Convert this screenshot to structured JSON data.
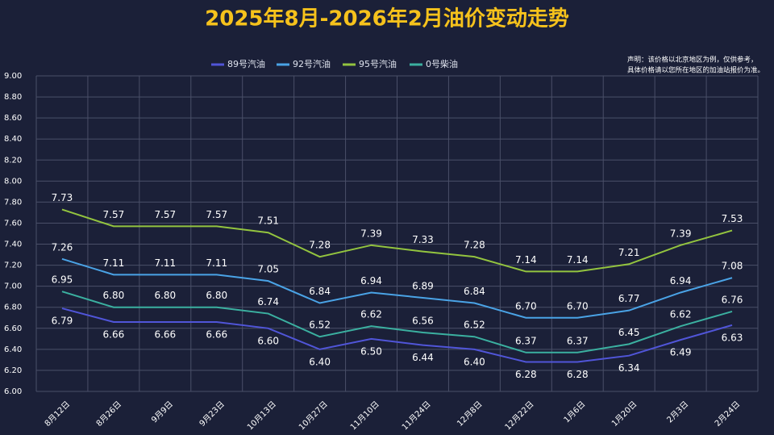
{
  "chart_data": {
    "type": "line",
    "title": "2025年8月-2026年2月油价变动走势",
    "note": [
      "声明：该价格以北京地区为例，仅供参考，",
      "具体价格请以您所在地区的加油站报价为准。"
    ],
    "categories": [
      "8月12日",
      "8月26日",
      "9月9日",
      "9月23日",
      "10月13日",
      "10月27日",
      "11月10日",
      "11月24日",
      "12月8日",
      "12月22日",
      "1月6日",
      "1月20日",
      "2月3日",
      "2月24日"
    ],
    "series": [
      {
        "name": "89号汽油",
        "color": "#5055d8",
        "label_side": "below",
        "values": [
          6.79,
          6.66,
          6.66,
          6.66,
          6.6,
          6.4,
          6.5,
          6.44,
          6.4,
          6.28,
          6.28,
          6.34,
          6.49,
          6.63
        ],
        "value_labels": [
          "6.79",
          "6.66",
          "6.66",
          "6.66",
          "6.60",
          "6.40",
          "6.50",
          "6.44",
          "6.40",
          "6.28",
          "6.28",
          "6.34",
          "6.49",
          "6.63"
        ]
      },
      {
        "name": "92号汽油",
        "color": "#4aa3e6",
        "label_side": "above",
        "values": [
          7.26,
          7.11,
          7.11,
          7.11,
          7.05,
          6.84,
          6.94,
          6.89,
          6.84,
          6.7,
          6.7,
          6.77,
          6.94,
          7.08
        ],
        "value_labels": [
          "7.26",
          "7.11",
          "7.11",
          "7.11",
          "7.05",
          "6.84",
          "6.94",
          "6.89",
          "6.84",
          "6.70",
          "6.70",
          "6.77",
          "6.94",
          "7.08"
        ]
      },
      {
        "name": "95号汽油",
        "color": "#93c43f",
        "label_side": "above",
        "values": [
          7.73,
          7.57,
          7.57,
          7.57,
          7.51,
          7.28,
          7.39,
          7.33,
          7.28,
          7.14,
          7.14,
          7.21,
          7.39,
          7.53
        ],
        "value_labels": [
          "7.73",
          "7.57",
          "7.57",
          "7.57",
          "7.51",
          "7.28",
          "7.39",
          "7.33",
          "7.28",
          "7.14",
          "7.14",
          "7.21",
          "7.39",
          "7.53"
        ]
      },
      {
        "name": "0号柴油",
        "color": "#3bb0a0",
        "label_side": "above",
        "values": [
          6.95,
          6.8,
          6.8,
          6.8,
          6.74,
          6.52,
          6.62,
          6.56,
          6.52,
          6.37,
          6.37,
          6.45,
          6.62,
          6.76
        ],
        "value_labels": [
          "6.95",
          "6.80",
          "6.80",
          "6.80",
          "6.74",
          "6.52",
          "6.62",
          "6.56",
          "6.52",
          "6.37",
          "6.37",
          "6.45",
          "6.62",
          "6.76"
        ]
      }
    ],
    "ylim": [
      6,
      9
    ],
    "yticks": [
      {
        "value": 6,
        "label": "6.00"
      },
      {
        "value": 6.2,
        "label": "6.20"
      },
      {
        "value": 6.4,
        "label": "6.40"
      },
      {
        "value": 6.6,
        "label": "6.60"
      },
      {
        "value": 6.8,
        "label": "6.80"
      },
      {
        "value": 7,
        "label": "7.00"
      },
      {
        "value": 7.2,
        "label": "7.20"
      },
      {
        "value": 7.4,
        "label": "7.40"
      },
      {
        "value": 7.6,
        "label": "7.60"
      },
      {
        "value": 7.8,
        "label": "7.80"
      },
      {
        "value": 8,
        "label": "8.00"
      },
      {
        "value": 8.2,
        "label": "8.20"
      },
      {
        "value": 8.4,
        "label": "8.40"
      },
      {
        "value": 8.6,
        "label": "8.60"
      },
      {
        "value": 8.8,
        "label": "8.80"
      },
      {
        "value": 9,
        "label": "9.00"
      }
    ],
    "grid": true
  }
}
